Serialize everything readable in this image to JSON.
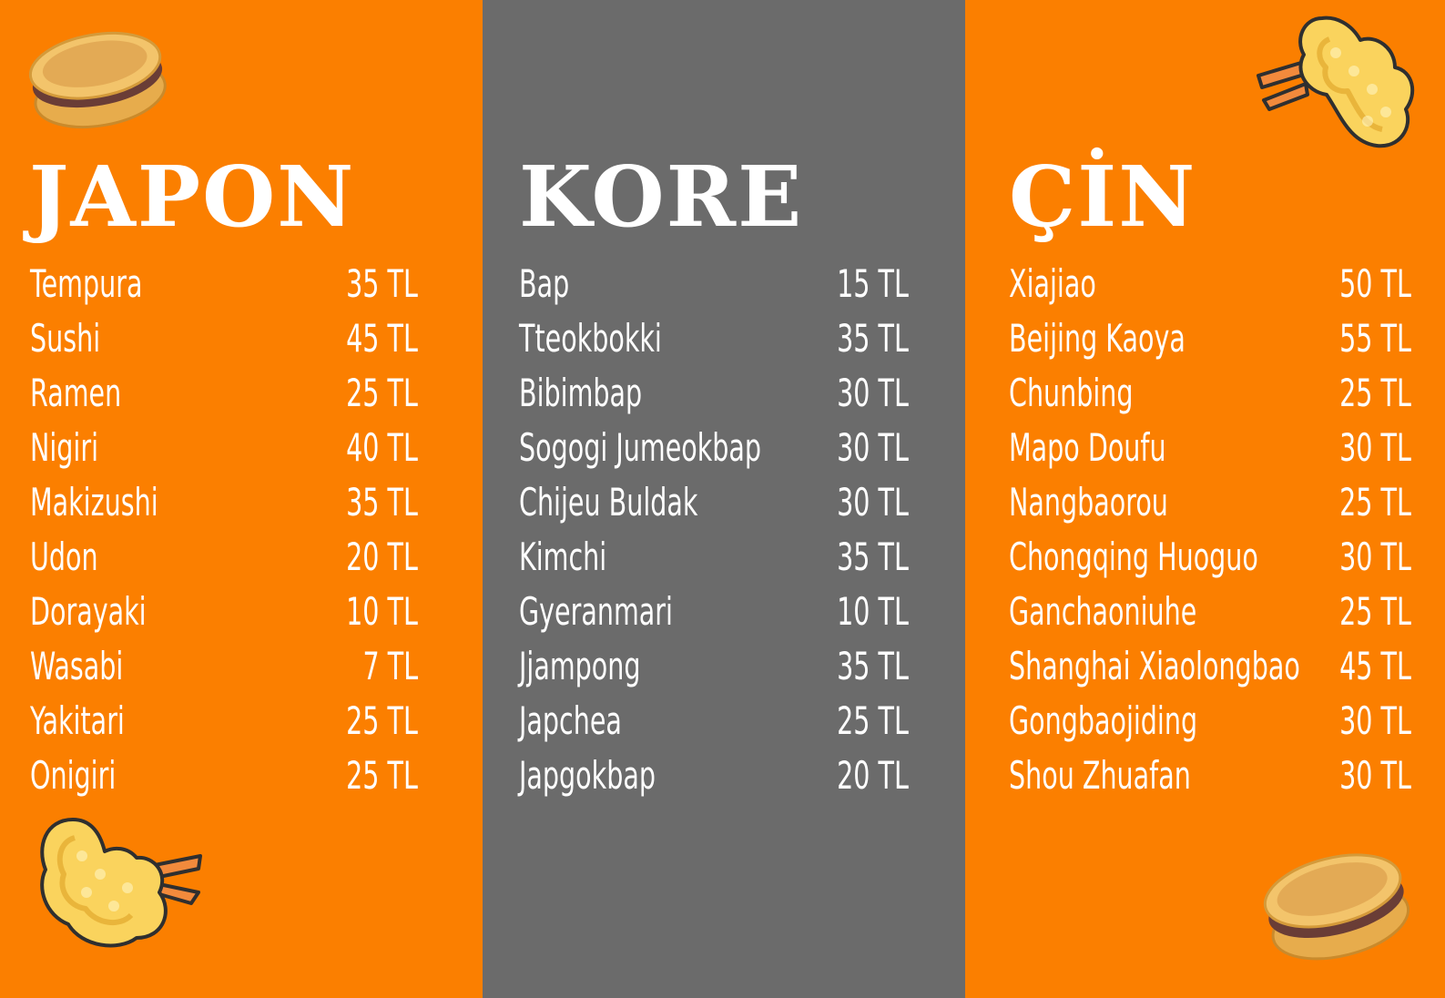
{
  "colors": {
    "orange": "#fb7f00",
    "gray": "#6b6b6b",
    "text": "#ffffff"
  },
  "sections": [
    {
      "title": "JAPON",
      "items": [
        {
          "name": "Tempura",
          "price": "35 TL"
        },
        {
          "name": "Sushi",
          "price": "45 TL"
        },
        {
          "name": "Ramen",
          "price": "25 TL"
        },
        {
          "name": "Nigiri",
          "price": "40 TL"
        },
        {
          "name": "Makizushi",
          "price": "35 TL"
        },
        {
          "name": "Udon",
          "price": "20 TL"
        },
        {
          "name": "Dorayaki",
          "price": "10 TL"
        },
        {
          "name": "Wasabi",
          "price": "7 TL"
        },
        {
          "name": "Yakitari",
          "price": "25 TL"
        },
        {
          "name": "Onigiri",
          "price": "25 TL"
        }
      ]
    },
    {
      "title": "KORE",
      "items": [
        {
          "name": "Bap",
          "price": "15 TL"
        },
        {
          "name": "Tteokbokki",
          "price": "35 TL"
        },
        {
          "name": "Bibimbap",
          "price": "30 TL"
        },
        {
          "name": "Sogogi Jumeokbap",
          "price": "30 TL"
        },
        {
          "name": "Chijeu Buldak",
          "price": "30 TL"
        },
        {
          "name": "Kimchi",
          "price": "35 TL"
        },
        {
          "name": "Gyeranmari",
          "price": "10 TL"
        },
        {
          "name": "Jjampong",
          "price": "35 TL"
        },
        {
          "name": "Japchea",
          "price": "25 TL"
        },
        {
          "name": "Japgokbap",
          "price": "20 TL"
        }
      ]
    },
    {
      "title": "ÇİN",
      "items": [
        {
          "name": "Xiajiao",
          "price": "50 TL"
        },
        {
          "name": "Beijing Kaoya",
          "price": "55 TL"
        },
        {
          "name": "Chunbing",
          "price": "25 TL"
        },
        {
          "name": "Mapo Doufu",
          "price": "30 TL"
        },
        {
          "name": "Nangbaorou",
          "price": "25 TL"
        },
        {
          "name": "Chongqing Huoguo",
          "price": "30 TL"
        },
        {
          "name": "Ganchaoniuhe",
          "price": "25 TL"
        },
        {
          "name": "Shanghai Xiaolongbao",
          "price": "45 TL"
        },
        {
          "name": "Gongbaojiding",
          "price": "30 TL"
        },
        {
          "name": "Shou Zhuafan",
          "price": "30 TL"
        }
      ]
    }
  ],
  "decorations": [
    "dorayaki-icon",
    "tempura-icon"
  ]
}
